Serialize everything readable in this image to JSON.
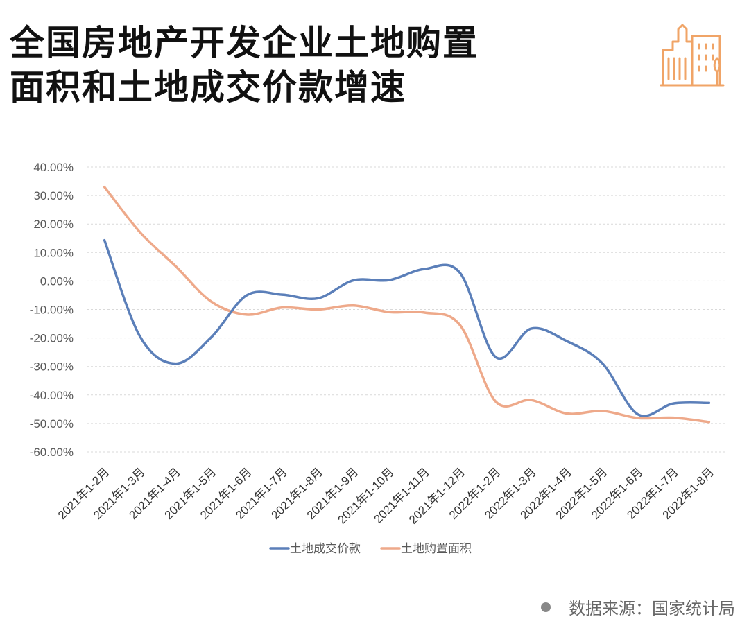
{
  "header": {
    "title_line1": "全国房地产开发企业土地购置",
    "title_line2": "面积和土地成交价款增速"
  },
  "colors": {
    "accent_orange": "#f0a467",
    "series_blue": "#5b7fb9",
    "series_salmon": "#eea98a"
  },
  "icons": {
    "logo": "city-buildings-icon",
    "source_bullet": "gray-dot-icon"
  },
  "chart_data": {
    "type": "line",
    "title": "",
    "xlabel": "",
    "ylabel": "",
    "categories": [
      "2021年1-2月",
      "2021年1-3月",
      "2021年1-4月",
      "2021年1-5月",
      "2021年1-6月",
      "2021年1-7月",
      "2021年1-8月",
      "2021年1-9月",
      "2021年1-10月",
      "2021年1-11月",
      "2021年1-12月",
      "2022年1-2月",
      "2022年1-3月",
      "2022年1-4月",
      "2022年1-5月",
      "2022年1-6月",
      "2022年1-7月",
      "2022年1-8月"
    ],
    "ylim": [
      -60,
      40
    ],
    "yticks": [
      40,
      30,
      20,
      10,
      0,
      -10,
      -20,
      -30,
      -40,
      -50,
      -60
    ],
    "ytick_labels": [
      "40.00%",
      "30.00%",
      "20.00%",
      "10.00%",
      "0.00%",
      "-10.00%",
      "-20.00%",
      "-30.00%",
      "-40.00%",
      "-50.00%",
      "-60.00%"
    ],
    "grid": true,
    "legend_position": "bottom",
    "series": [
      {
        "name": "土地成交价款",
        "color": "#5b7fb9",
        "values": [
          14.3,
          -19.5,
          -29.0,
          -19.8,
          -5.0,
          -4.8,
          -6.1,
          0.2,
          0.3,
          4.2,
          2.8,
          -26.7,
          -16.7,
          -21.1,
          -28.9,
          -46.8,
          -43.0,
          -42.8
        ]
      },
      {
        "name": "土地购置面积",
        "color": "#eea98a",
        "values": [
          33.0,
          17.1,
          5.2,
          -7.2,
          -11.8,
          -9.3,
          -10.0,
          -8.6,
          -10.9,
          -11.1,
          -15.5,
          -42.3,
          -41.8,
          -46.5,
          -45.6,
          -48.1,
          -48.0,
          -49.5
        ]
      }
    ]
  },
  "footer": {
    "source_text": "数据来源：国家统计局"
  }
}
